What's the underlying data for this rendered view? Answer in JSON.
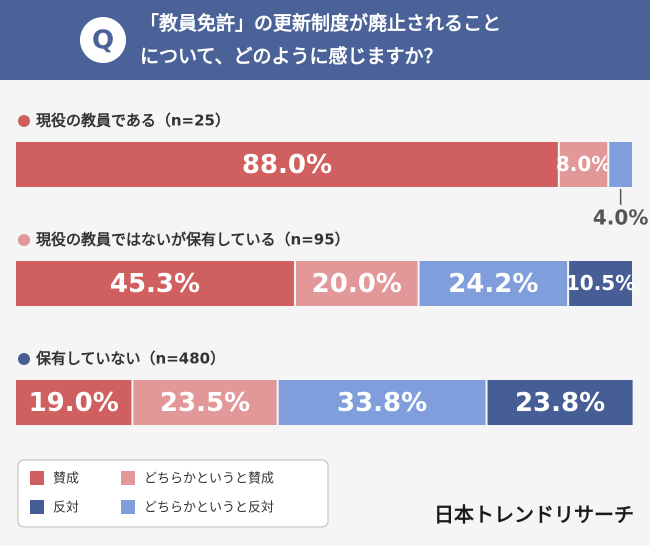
{
  "chart_data": {
    "type": "stacked-bar-100",
    "question_label": "Q",
    "title_lines": [
      "「教員免許」の更新制度が廃止されること",
      "について、どのように感じますか？"
    ],
    "categories": [
      "現役の教員である（n=25）",
      "現役の教員ではないが保有している（n=95）",
      "保有していない（n=480）"
    ],
    "series": [
      {
        "name": "賛成",
        "color": "#d0605f",
        "values": [
          88.0,
          45.3,
          19.0
        ],
        "value_labels": [
          "88.0%",
          "45.3%",
          "19.0%"
        ]
      },
      {
        "name": "どちらかというと賛成",
        "color": "#e29798",
        "values": [
          8.0,
          20.0,
          23.5
        ],
        "value_labels": [
          "8.0%",
          "20.0%",
          "23.5%"
        ]
      },
      {
        "name": "どちらかというと反対",
        "color": "#7f9edb",
        "values": [
          4.0,
          24.2,
          33.8
        ],
        "value_labels": [
          "4.0%",
          "24.2%",
          "33.8%"
        ]
      },
      {
        "name": "反対",
        "color": "#465e95",
        "values": [
          null,
          10.5,
          23.8
        ],
        "value_labels": [
          null,
          "10.5%",
          "23.8%"
        ]
      }
    ],
    "xlim": [
      0,
      100
    ],
    "brand": "日本トレンドリサーチ"
  }
}
